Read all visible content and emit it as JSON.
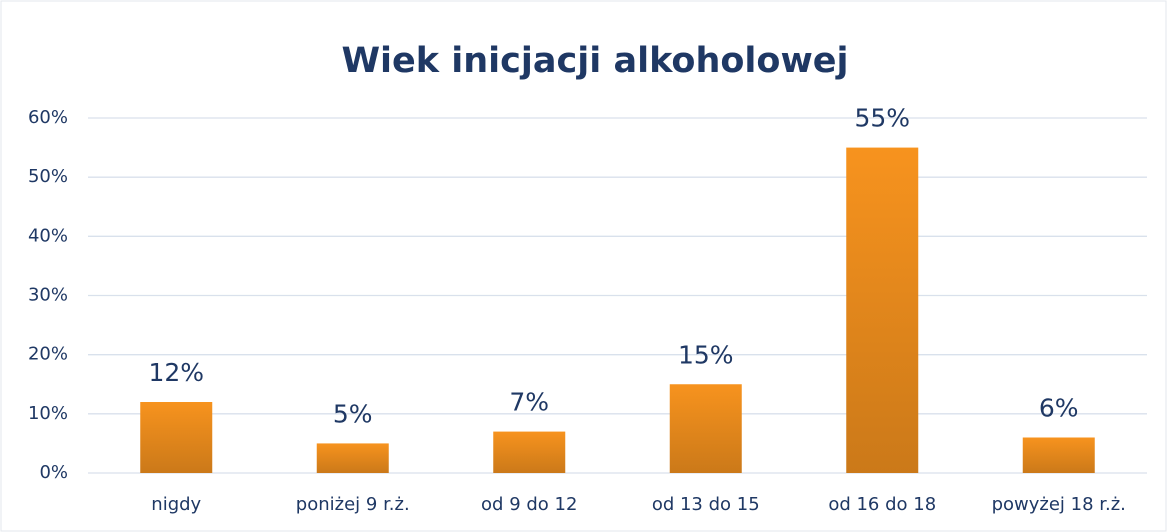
{
  "chart_data": {
    "type": "bar",
    "title": "Wiek inicjacji alkoholowej",
    "categories": [
      "nigdy",
      "poniżej 9 r.ż.",
      "od 9 do 12",
      "od 13 do 15",
      "od 16 do 18",
      "powyżej 18 r.ż."
    ],
    "values": [
      12,
      5,
      7,
      15,
      55,
      6
    ],
    "value_labels": [
      "12%",
      "5%",
      "7%",
      "15%",
      "55%",
      "6%"
    ],
    "color": "#f7931e",
    "ylim": [
      0,
      60
    ],
    "yticks": [
      {
        "value": 0,
        "label": "0%"
      },
      {
        "value": 10,
        "label": "10%"
      },
      {
        "value": 20,
        "label": "20%"
      },
      {
        "value": 30,
        "label": "30%"
      },
      {
        "value": 40,
        "label": "40%"
      },
      {
        "value": 50,
        "label": "50%"
      },
      {
        "value": 60,
        "label": "60%"
      }
    ],
    "grid": true
  }
}
